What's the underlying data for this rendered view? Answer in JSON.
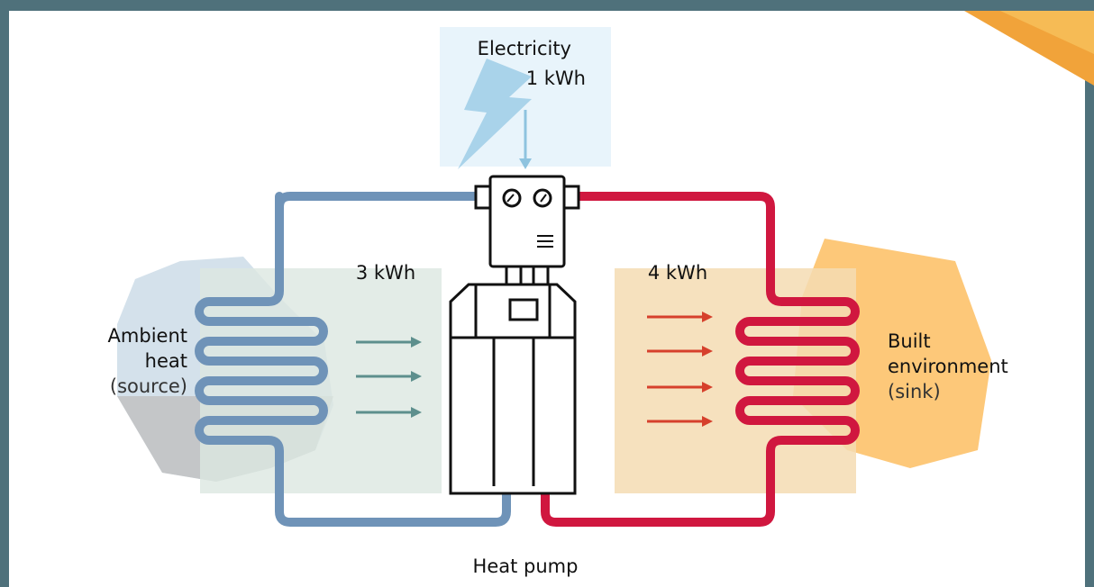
{
  "electricity": {
    "label": "Electricity",
    "amount": "1 kWh"
  },
  "source": {
    "amount": "3 kWh",
    "label_line1": "Ambient",
    "label_line2": "heat",
    "note": "(source)"
  },
  "sink": {
    "amount": "4 kWh",
    "label_line1": "Built",
    "label_line2": "environment",
    "note": "(sink)"
  },
  "device": {
    "label": "Heat pump"
  }
}
